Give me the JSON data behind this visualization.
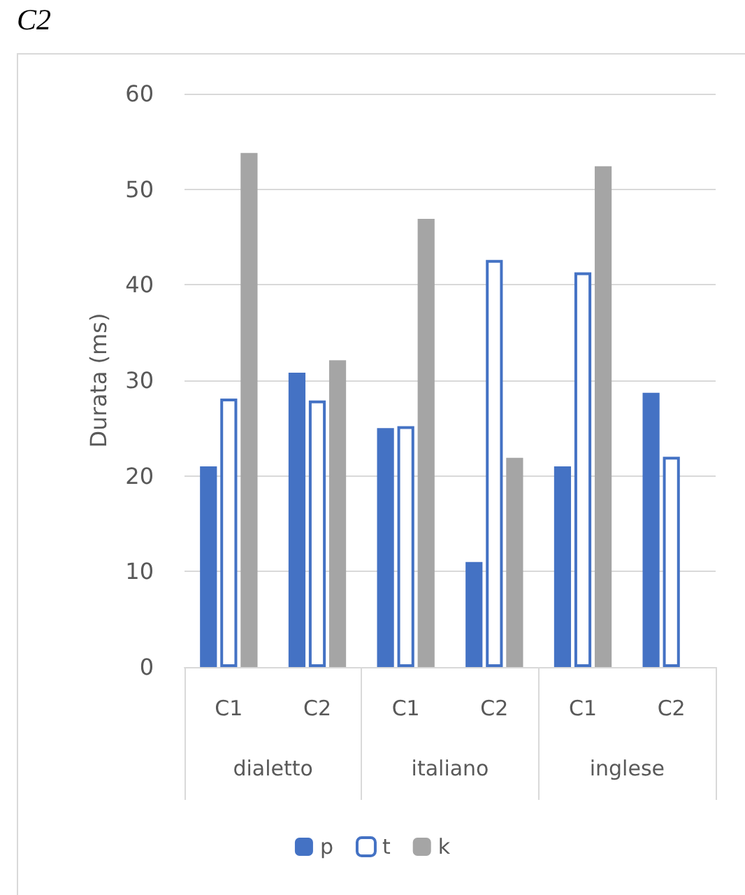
{
  "chart_data": {
    "type": "bar",
    "title": "C2",
    "ylabel": "Durata (ms)",
    "categories": [
      "C1",
      "C2",
      "C1",
      "C2",
      "C1",
      "C2"
    ],
    "annotations": [
      "dialetto",
      "italiano",
      "inglese"
    ],
    "series": [
      {
        "name": "p",
        "color": "#4472c4",
        "values": [
          21,
          30.8,
          25,
          11,
          21,
          28.7
        ]
      },
      {
        "name": "t",
        "color": "#4472c4",
        "values": [
          28.1,
          27.9,
          25.2,
          42.6,
          41.3,
          22
        ]
      },
      {
        "name": "k",
        "color": "#a5a5a5",
        "values": [
          53.8,
          32.1,
          46.9,
          21.9,
          52.4,
          null
        ]
      }
    ],
    "ylim": [
      0,
      60
    ],
    "yticks": [
      0,
      10,
      20,
      30,
      40,
      50,
      60
    ],
    "grid": "y",
    "legend": "bottom"
  }
}
